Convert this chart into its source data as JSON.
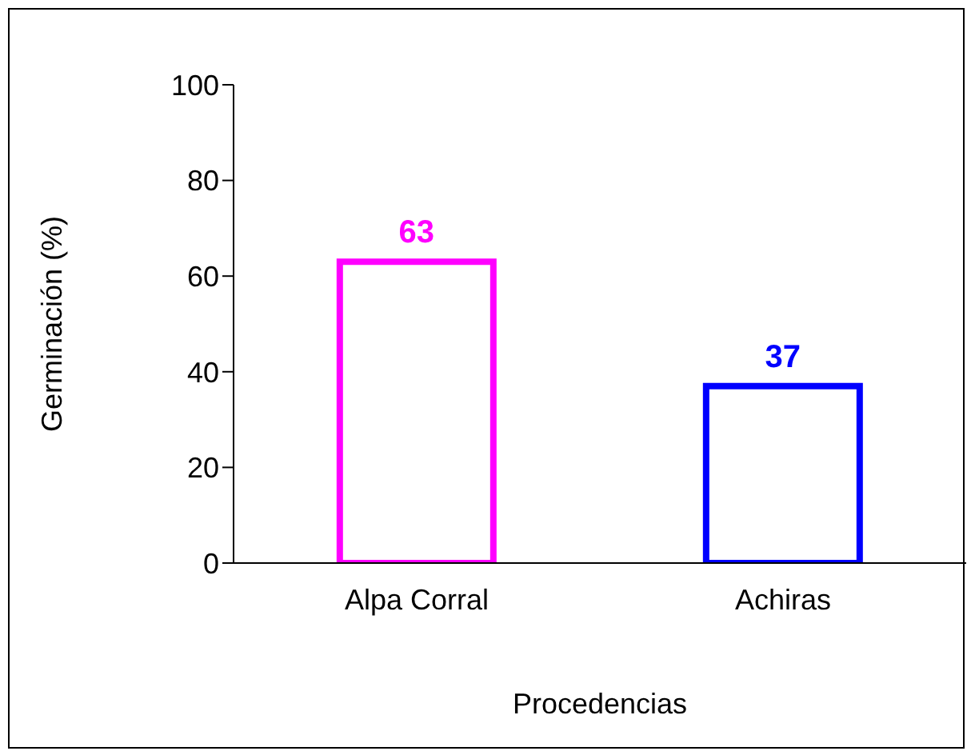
{
  "chart_data": {
    "type": "bar",
    "xlabel": "Procedencias",
    "ylabel": "Germinación (%)",
    "categories": [
      "Alpa Corral",
      "Achiras"
    ],
    "values": [
      63,
      37
    ],
    "colors": [
      "#ff00ff",
      "#0000ff"
    ],
    "ylim": [
      0,
      100
    ],
    "yticks": [
      0,
      20,
      40,
      60,
      80,
      100
    ],
    "data_labels": true,
    "grid": false,
    "legend": false
  }
}
